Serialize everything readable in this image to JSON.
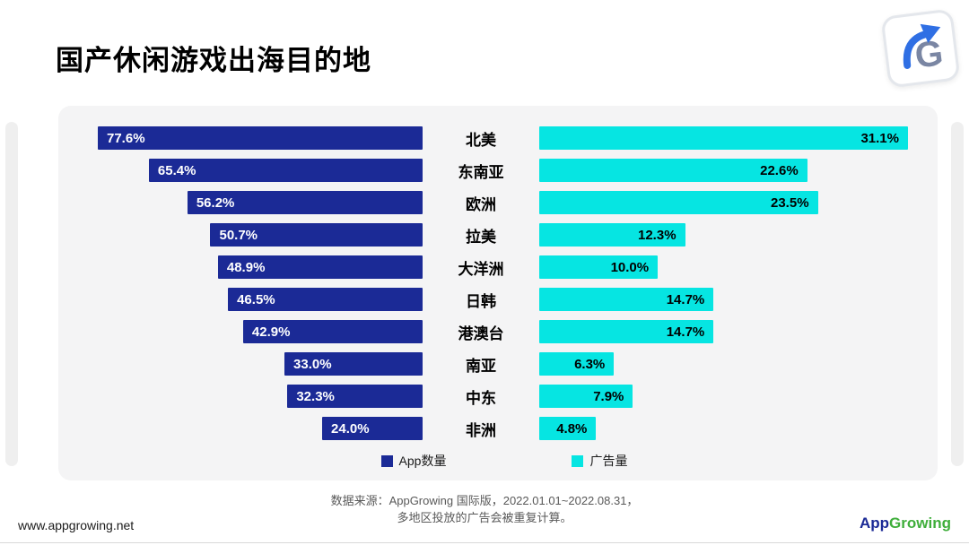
{
  "title": "国产休闲游戏出海目的地",
  "chart_data": {
    "type": "bar",
    "variant": "bidirectional-tornado",
    "categories": [
      "北美",
      "东南亚",
      "欧洲",
      "拉美",
      "大洋洲",
      "日韩",
      "港澳台",
      "南亚",
      "中东",
      "非洲"
    ],
    "series": [
      {
        "name": "App数量",
        "color": "#1B2A96",
        "values": [
          77.6,
          65.4,
          56.2,
          50.7,
          48.9,
          46.5,
          42.9,
          33.0,
          32.3,
          24.0
        ]
      },
      {
        "name": "广告量",
        "color": "#06E5E2",
        "values": [
          31.1,
          22.6,
          23.5,
          12.3,
          10.0,
          14.7,
          14.7,
          6.3,
          7.9,
          4.8
        ]
      }
    ],
    "value_suffix": "%",
    "title": "国产休闲游戏出海目的地",
    "legend_position": "bottom",
    "grid": false
  },
  "legend": [
    {
      "label": "App数量",
      "color": "#1B2A96"
    },
    {
      "label": "广告量",
      "color": "#06E5E2"
    }
  ],
  "footer": {
    "source_line1": "数据来源：AppGrowing 国际版，2022.01.01~2022.08.31，",
    "source_line2": "多地区投放的广告会被重复计算。",
    "website": "www.appgrowing.net",
    "brand_part1": "App",
    "brand_part2": "Growing"
  }
}
